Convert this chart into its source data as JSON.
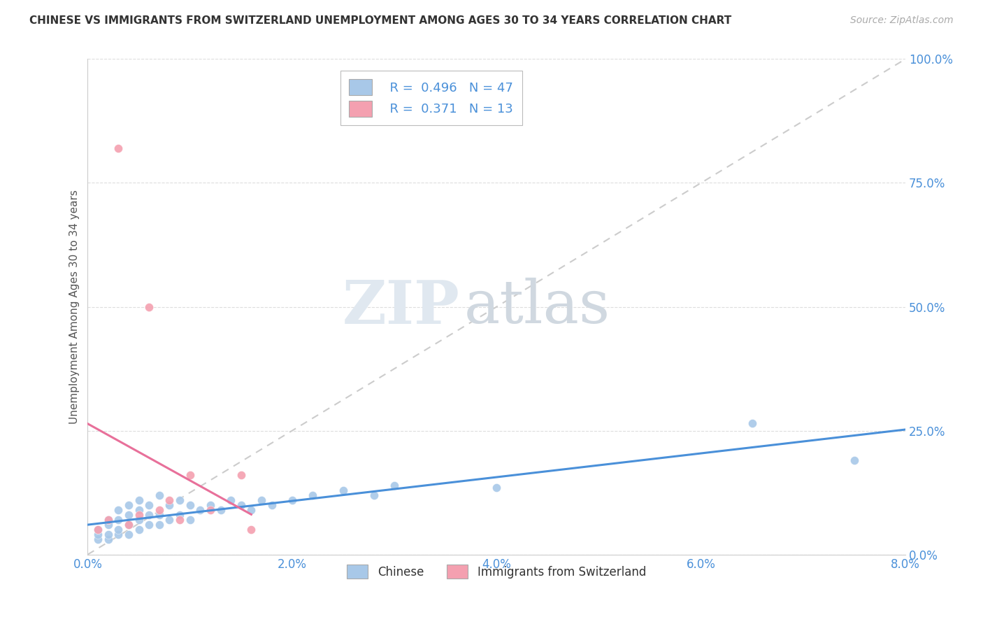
{
  "title": "CHINESE VS IMMIGRANTS FROM SWITZERLAND UNEMPLOYMENT AMONG AGES 30 TO 34 YEARS CORRELATION CHART",
  "source": "Source: ZipAtlas.com",
  "ylabel": "Unemployment Among Ages 30 to 34 years",
  "xlim": [
    0.0,
    0.08
  ],
  "ylim": [
    0.0,
    1.0
  ],
  "xtick_labels": [
    "0.0%",
    "2.0%",
    "4.0%",
    "6.0%",
    "8.0%"
  ],
  "xtick_vals": [
    0.0,
    0.02,
    0.04,
    0.06,
    0.08
  ],
  "ytick_labels": [
    "0.0%",
    "25.0%",
    "50.0%",
    "75.0%",
    "100.0%"
  ],
  "ytick_vals": [
    0.0,
    0.25,
    0.5,
    0.75,
    1.0
  ],
  "chinese_color": "#a8c8e8",
  "swiss_color": "#f4a0b0",
  "chinese_line_color": "#4a90d9",
  "swiss_line_color": "#e8709a",
  "diagonal_color": "#cccccc",
  "R_chinese": 0.496,
  "N_chinese": 47,
  "R_swiss": 0.371,
  "N_swiss": 13,
  "legend_label_chinese": "Chinese",
  "legend_label_swiss": "Immigrants from Switzerland",
  "watermark_zip": "ZIP",
  "watermark_atlas": "atlas",
  "background_color": "#ffffff",
  "chinese_x": [
    0.001,
    0.001,
    0.001,
    0.002,
    0.002,
    0.002,
    0.002,
    0.003,
    0.003,
    0.003,
    0.003,
    0.004,
    0.004,
    0.004,
    0.004,
    0.005,
    0.005,
    0.005,
    0.005,
    0.006,
    0.006,
    0.006,
    0.007,
    0.007,
    0.007,
    0.008,
    0.008,
    0.009,
    0.009,
    0.01,
    0.01,
    0.011,
    0.012,
    0.013,
    0.014,
    0.015,
    0.016,
    0.017,
    0.018,
    0.02,
    0.022,
    0.025,
    0.028,
    0.03,
    0.04,
    0.065,
    0.075
  ],
  "chinese_y": [
    0.03,
    0.04,
    0.05,
    0.03,
    0.04,
    0.06,
    0.07,
    0.04,
    0.05,
    0.07,
    0.09,
    0.04,
    0.06,
    0.08,
    0.1,
    0.05,
    0.07,
    0.09,
    0.11,
    0.06,
    0.08,
    0.1,
    0.06,
    0.08,
    0.12,
    0.07,
    0.1,
    0.08,
    0.11,
    0.07,
    0.1,
    0.09,
    0.1,
    0.09,
    0.11,
    0.1,
    0.09,
    0.11,
    0.1,
    0.11,
    0.12,
    0.13,
    0.12,
    0.14,
    0.135,
    0.265,
    0.19
  ],
  "swiss_x": [
    0.001,
    0.002,
    0.003,
    0.004,
    0.005,
    0.006,
    0.007,
    0.008,
    0.009,
    0.01,
    0.012,
    0.015,
    0.016
  ],
  "swiss_y": [
    0.05,
    0.07,
    0.82,
    0.06,
    0.08,
    0.5,
    0.09,
    0.11,
    0.07,
    0.16,
    0.09,
    0.16,
    0.05
  ],
  "tick_color": "#4a90d9",
  "title_fontsize": 11,
  "source_fontsize": 10,
  "axis_label_fontsize": 11,
  "tick_fontsize": 12
}
